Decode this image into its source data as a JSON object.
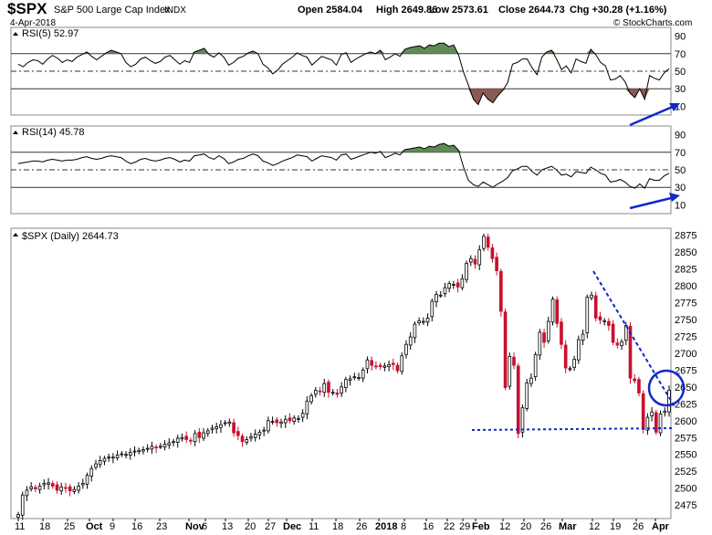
{
  "header": {
    "symbol": "$SPX",
    "description": "S&P 500 Large Cap Index",
    "exchange": "INDX",
    "date": "4-Apr-2018",
    "open": "Open 2584.04",
    "high": "High 2649.86",
    "low": "Low 2573.61",
    "close": "Close 2644.73",
    "change": "Chg +30.28 (+1.16%)",
    "credit": "© StockCharts.com",
    "up_arrow": "▲"
  },
  "colors": {
    "up_candle": "#ffffff",
    "down_candle": "#c8102e",
    "rsi_fill_above": "#5f8c55",
    "rsi_fill_below": "#8b5a55",
    "annotation": "#1428c8"
  },
  "chart_data": [
    {
      "type": "line",
      "panel": "rsi5",
      "title": "RSI(5) 52.97",
      "ylim": [
        0,
        100
      ],
      "y_ticks": [
        10,
        30,
        50,
        70,
        90
      ],
      "reference_lines": [
        70,
        50,
        30
      ],
      "values": [
        58,
        55,
        60,
        63,
        62,
        58,
        64,
        68,
        65,
        60,
        63,
        61,
        66,
        69,
        72,
        67,
        63,
        67,
        71,
        74,
        72,
        70,
        60,
        55,
        58,
        64,
        66,
        62,
        59,
        61,
        66,
        68,
        63,
        58,
        62,
        60,
        72,
        74,
        76,
        69,
        66,
        71,
        66,
        57,
        60,
        65,
        67,
        71,
        73,
        70,
        58,
        54,
        47,
        51,
        58,
        62,
        66,
        71,
        68,
        66,
        57,
        62,
        67,
        65,
        63,
        57,
        69,
        71,
        60,
        64,
        67,
        70,
        72,
        70,
        74,
        63,
        66,
        70,
        67,
        75,
        77,
        78,
        79,
        76,
        80,
        79,
        82,
        82,
        78,
        80,
        68,
        49,
        34,
        18,
        12,
        25,
        18,
        14,
        22,
        28,
        37,
        58,
        60,
        64,
        64,
        54,
        46,
        66,
        72,
        74,
        64,
        52,
        56,
        48,
        64,
        61,
        59,
        75,
        69,
        60,
        56,
        40,
        41,
        45,
        38,
        25,
        20,
        30,
        18,
        45,
        42,
        40,
        48,
        53
      ]
    },
    {
      "type": "line",
      "panel": "rsi14",
      "title": "RSI(14) 45.78",
      "ylim": [
        0,
        100
      ],
      "y_ticks": [
        10,
        30,
        50,
        70,
        90
      ],
      "reference_lines": [
        70,
        50,
        30
      ],
      "values": [
        57,
        58,
        59,
        60,
        60,
        59,
        61,
        62,
        61,
        60,
        61,
        61,
        62,
        64,
        65,
        63,
        62,
        63,
        65,
        66,
        65,
        64,
        60,
        57,
        59,
        62,
        63,
        61,
        60,
        61,
        63,
        64,
        62,
        59,
        61,
        60,
        66,
        67,
        68,
        64,
        62,
        66,
        63,
        57,
        59,
        62,
        63,
        66,
        68,
        66,
        60,
        58,
        55,
        57,
        60,
        62,
        64,
        67,
        66,
        65,
        60,
        63,
        66,
        65,
        64,
        61,
        67,
        68,
        62,
        64,
        66,
        68,
        70,
        69,
        71,
        64,
        66,
        69,
        67,
        73,
        74,
        75,
        76,
        74,
        77,
        76,
        79,
        80,
        77,
        78,
        72,
        53,
        38,
        33,
        31,
        36,
        33,
        30,
        34,
        37,
        41,
        49,
        51,
        54,
        54,
        48,
        44,
        50,
        52,
        54,
        50,
        44,
        45,
        42,
        48,
        47,
        46,
        53,
        50,
        46,
        44,
        36,
        37,
        39,
        36,
        31,
        29,
        34,
        29,
        40,
        38,
        38,
        43,
        46
      ]
    },
    {
      "type": "candlestick",
      "panel": "price",
      "title": "$SPX (Daily) 2644.73",
      "ylim": [
        2455,
        2885
      ],
      "y_ticks": [
        2475,
        2500,
        2525,
        2550,
        2575,
        2600,
        2625,
        2650,
        2675,
        2700,
        2725,
        2750,
        2775,
        2800,
        2825,
        2850,
        2875
      ],
      "x_tick_labels": [
        "11",
        "18",
        "25",
        "Oct",
        "9",
        "16",
        "23",
        "Nov",
        "6",
        "13",
        "20",
        "27",
        "Dec",
        "11",
        "18",
        "26",
        "2018",
        "8",
        "16",
        "22",
        "29",
        "Feb",
        "12",
        "20",
        "26",
        "Mar",
        "12",
        "19",
        "26",
        "Apr"
      ],
      "close": [
        2461,
        2490,
        2497,
        2502,
        2499,
        2503,
        2507,
        2508,
        2503,
        2497,
        2502,
        2500,
        2496,
        2498,
        2503,
        2507,
        2519,
        2529,
        2536,
        2541,
        2544,
        2546,
        2546,
        2549,
        2551,
        2550,
        2553,
        2555,
        2556,
        2557,
        2559,
        2562,
        2560,
        2562,
        2565,
        2567,
        2569,
        2574,
        2575,
        2572,
        2570,
        2581,
        2575,
        2582,
        2585,
        2589,
        2591,
        2594,
        2597,
        2598,
        2582,
        2578,
        2569,
        2572,
        2576,
        2580,
        2583,
        2586,
        2600,
        2599,
        2597,
        2598,
        2602,
        2600,
        2604,
        2603,
        2611,
        2629,
        2637,
        2645,
        2643,
        2655,
        2642,
        2642,
        2639,
        2650,
        2661,
        2662,
        2665,
        2664,
        2675,
        2690,
        2682,
        2680,
        2680,
        2681,
        2683,
        2683,
        2674,
        2696,
        2713,
        2724,
        2743,
        2748,
        2747,
        2752,
        2777,
        2787,
        2786,
        2797,
        2803,
        2802,
        2798,
        2810,
        2833,
        2840,
        2832,
        2853,
        2873,
        2857,
        2840,
        2822,
        2762,
        2649,
        2695,
        2682,
        2581,
        2619,
        2656,
        2663,
        2698,
        2731,
        2716,
        2747,
        2780,
        2744,
        2713,
        2678,
        2677,
        2691,
        2720,
        2728,
        2783,
        2786,
        2752,
        2749,
        2748,
        2741,
        2716,
        2712,
        2717,
        2741,
        2663,
        2659,
        2641,
        2587,
        2605,
        2613,
        2583,
        2610,
        2614,
        2645
      ]
    }
  ],
  "annotations": {
    "rsi5_arrow_label": "rising arrow",
    "rsi14_arrow_label": "rising arrow"
  }
}
